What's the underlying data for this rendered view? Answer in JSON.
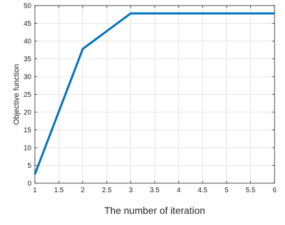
{
  "chart_data": {
    "type": "line",
    "title": "",
    "xlabel": "The number of iteration",
    "ylabel": "Objective function",
    "xlim": [
      1,
      6
    ],
    "ylim": [
      0,
      50
    ],
    "xticks": [
      "1",
      "1.5",
      "2",
      "2.5",
      "3",
      "3.5",
      "4",
      "4.5",
      "5",
      "5.5",
      "6"
    ],
    "yticks": [
      "0",
      "5",
      "10",
      "15",
      "20",
      "25",
      "30",
      "35",
      "40",
      "45",
      "50"
    ],
    "grid": true,
    "legend": "none",
    "series": [
      {
        "color": "#0072bd",
        "x": [
          1,
          2,
          3,
          4,
          5,
          6
        ],
        "y": [
          2.5,
          37.8,
          47.8,
          47.8,
          47.8,
          47.8
        ]
      }
    ]
  }
}
